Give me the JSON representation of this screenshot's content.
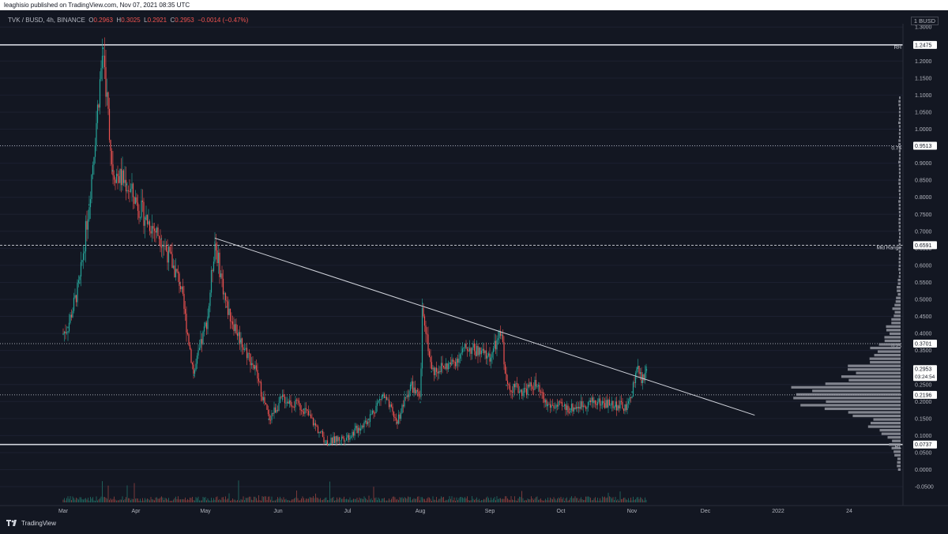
{
  "header": {
    "published": "leaghisio published on TradingView.com, Nov 07, 2021 08:35 UTC"
  },
  "legend": {
    "symbol": "TVK / BUSD, 4h, BINANCE",
    "o_label": "O",
    "o": "0.2963",
    "h_label": "H",
    "h": "0.3025",
    "l_label": "L",
    "l": "0.2921",
    "c_label": "C",
    "c": "0.2953",
    "change": "−0.0014 (−0.47%)"
  },
  "currency_badge": "1 BUSD",
  "footer": {
    "brand": "TradingView"
  },
  "colors": {
    "up": "#26a69a",
    "down": "#ef5350",
    "background": "#131722",
    "line": "#d1d4dc"
  },
  "chart_data": {
    "type": "candlestick",
    "symbol": "TVK / BUSD",
    "interval": "4h",
    "exchange": "BINANCE",
    "x_ticks": [
      "Mar",
      "Apr",
      "May",
      "Jun",
      "Jul",
      "Aug",
      "Sep",
      "Oct",
      "Nov",
      "Dec",
      "2022",
      "24"
    ],
    "y_ticks": [
      "1.3000",
      "1.2500",
      "1.2000",
      "1.1500",
      "1.1000",
      "1.0500",
      "1.0000",
      "0.9500",
      "0.9000",
      "0.8500",
      "0.8000",
      "0.7500",
      "0.7000",
      "0.6500",
      "0.6000",
      "0.5500",
      "0.5000",
      "0.4500",
      "0.4000",
      "0.3500",
      "0.3000",
      "0.2500",
      "0.2000",
      "0.1500",
      "0.1000",
      "0.0500",
      "0.0000",
      "-0.0500"
    ],
    "ylim": [
      -0.06,
      1.32
    ],
    "price_path_approx": [
      {
        "t": "Mar 01",
        "price": 0.4
      },
      {
        "t": "Mar 03",
        "price": 0.42
      },
      {
        "t": "Mar 08",
        "price": 0.55
      },
      {
        "t": "Mar 12",
        "price": 0.78
      },
      {
        "t": "Mar 18",
        "price": 1.24
      },
      {
        "t": "Mar 22",
        "price": 0.88
      },
      {
        "t": "Mar 28",
        "price": 0.84
      },
      {
        "t": "Apr 05",
        "price": 0.74
      },
      {
        "t": "Apr 12",
        "price": 0.68
      },
      {
        "t": "Apr 20",
        "price": 0.55
      },
      {
        "t": "Apr 26",
        "price": 0.28
      },
      {
        "t": "May 02",
        "price": 0.45
      },
      {
        "t": "May 05",
        "price": 0.67
      },
      {
        "t": "May 10",
        "price": 0.48
      },
      {
        "t": "May 16",
        "price": 0.38
      },
      {
        "t": "May 22",
        "price": 0.3
      },
      {
        "t": "May 28",
        "price": 0.15
      },
      {
        "t": "Jun 03",
        "price": 0.21
      },
      {
        "t": "Jun 12",
        "price": 0.18
      },
      {
        "t": "Jun 22",
        "price": 0.08
      },
      {
        "t": "Jul 02",
        "price": 0.1
      },
      {
        "t": "Jul 10",
        "price": 0.15
      },
      {
        "t": "Jul 16",
        "price": 0.22
      },
      {
        "t": "Jul 22",
        "price": 0.14
      },
      {
        "t": "Jul 28",
        "price": 0.25
      },
      {
        "t": "Aug 01",
        "price": 0.2
      },
      {
        "t": "Aug 02",
        "price": 0.49
      },
      {
        "t": "Aug 06",
        "price": 0.29
      },
      {
        "t": "Aug 15",
        "price": 0.31
      },
      {
        "t": "Aug 22",
        "price": 0.36
      },
      {
        "t": "Sep 01",
        "price": 0.33
      },
      {
        "t": "Sep 06",
        "price": 0.4
      },
      {
        "t": "Sep 08",
        "price": 0.25
      },
      {
        "t": "Sep 15",
        "price": 0.23
      },
      {
        "t": "Sep 20",
        "price": 0.25
      },
      {
        "t": "Sep 25",
        "price": 0.19
      },
      {
        "t": "Oct 05",
        "price": 0.18
      },
      {
        "t": "Oct 15",
        "price": 0.2
      },
      {
        "t": "Oct 25",
        "price": 0.19
      },
      {
        "t": "Oct 30",
        "price": 0.18
      },
      {
        "t": "Nov 01",
        "price": 0.23
      },
      {
        "t": "Nov 03",
        "price": 0.3
      },
      {
        "t": "Nov 05",
        "price": 0.26
      },
      {
        "t": "Nov 07",
        "price": 0.2953
      }
    ],
    "horizontal_levels": [
      {
        "label": "RH",
        "price": 1.2475,
        "style": "solid"
      },
      {
        "label": "0.75",
        "price": 0.9513,
        "style": "dotted"
      },
      {
        "label": "Mid Range",
        "price": 0.6591,
        "style": "dashed"
      },
      {
        "label": "0.25",
        "price": 0.3701,
        "style": "dotted"
      },
      {
        "label": "",
        "price": 0.2196,
        "style": "dotted"
      },
      {
        "label": "RL",
        "price": 0.0737,
        "style": "solid"
      }
    ],
    "price_badges": [
      "1.2475",
      "0.9513",
      "0.6591",
      "0.3701",
      "0.2953",
      "0.2196",
      "0.0737"
    ],
    "countdown": "03:24:54",
    "trendline": {
      "start": {
        "t": "May 05",
        "price": 0.68
      },
      "end": {
        "t": "Dec 22",
        "price": 0.16
      }
    },
    "volume_profile": {
      "peak_price": 0.21,
      "range": [
        0.0,
        1.1
      ]
    },
    "title": "",
    "xlabel": "",
    "ylabel": ""
  }
}
